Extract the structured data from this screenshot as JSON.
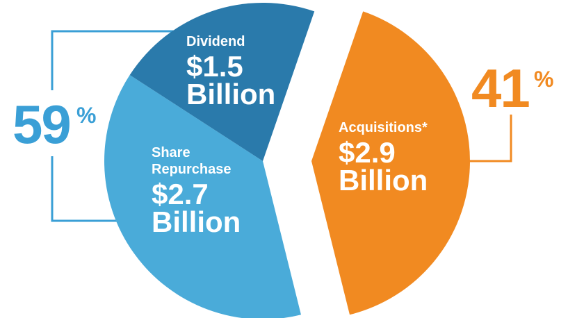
{
  "chart_data": {
    "type": "pie",
    "categories": [
      "Acquisitions*",
      "Share Repurchase",
      "Dividend"
    ],
    "values": [
      2.9,
      2.7,
      1.5
    ],
    "value_labels": [
      "$2.9",
      "$2.7",
      "$1.5"
    ],
    "unit_label": "Billion",
    "colors": [
      "#f18a21",
      "#4aabd9",
      "#2a7aab"
    ],
    "percents": [
      59,
      41
    ],
    "percent_sign": "%",
    "percent_colors": [
      "#3a9fd6",
      "#f18a21"
    ]
  }
}
